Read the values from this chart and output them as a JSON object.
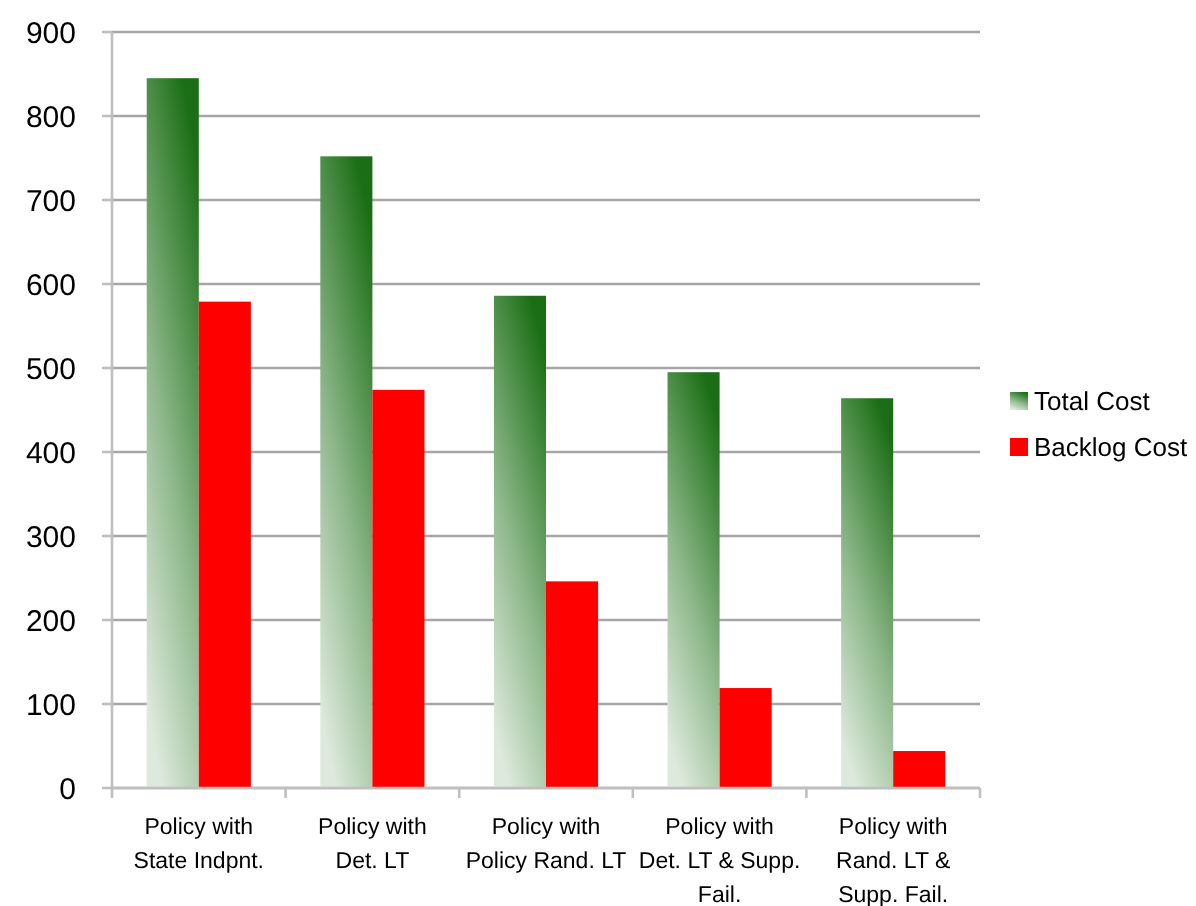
{
  "chart_data": {
    "type": "bar",
    "categories": [
      "Policy with\nState Indpnt.",
      "Policy with\nDet. LT",
      "Policy with\nPolicy Rand. LT",
      "Policy with\nDet. LT & Supp.\nFail.",
      "Policy with\nRand. LT &\nSupp. Fail."
    ],
    "series": [
      {
        "name": "Total Cost",
        "color": "#1b6e15",
        "values": [
          845,
          752,
          586,
          495,
          464
        ]
      },
      {
        "name": "Backlog Cost",
        "color": "#ff0000",
        "values": [
          579,
          474,
          246,
          119,
          44
        ]
      }
    ],
    "ylim": [
      0,
      900
    ],
    "yticks": [
      0,
      100,
      200,
      300,
      400,
      500,
      600,
      700,
      800,
      900
    ],
    "grid": "y",
    "legend": "right"
  }
}
